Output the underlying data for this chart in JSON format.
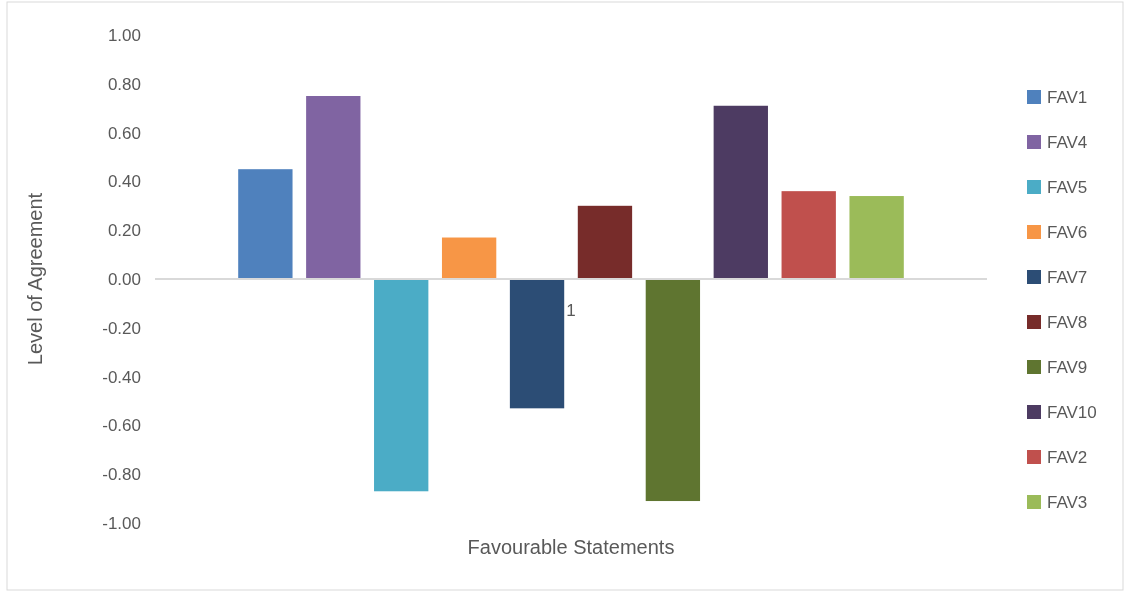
{
  "chart_data": {
    "type": "bar",
    "xlabel": "Favourable Statements",
    "ylabel": "Level of Agreement",
    "categories": [
      "1"
    ],
    "ylim": [
      -1,
      1
    ],
    "yticks": [
      {
        "value": -1,
        "label": "-1.00"
      },
      {
        "value": -0.8,
        "label": "-0.80"
      },
      {
        "value": -0.6,
        "label": "-0.60"
      },
      {
        "value": -0.4,
        "label": "-0.40"
      },
      {
        "value": -0.2,
        "label": "-0.20"
      },
      {
        "value": 0,
        "label": "0.00"
      },
      {
        "value": 0.2,
        "label": "0.20"
      },
      {
        "value": 0.4,
        "label": "0.40"
      },
      {
        "value": 0.6,
        "label": "0.60"
      },
      {
        "value": 0.8,
        "label": "0.80"
      },
      {
        "value": 1,
        "label": "1.00"
      }
    ],
    "legend": "right",
    "series": [
      {
        "name": "FAV1",
        "color": "#4f81bd",
        "values": [
          0.45
        ]
      },
      {
        "name": "FAV4",
        "color": "#8064a2",
        "values": [
          0.75
        ]
      },
      {
        "name": "FAV5",
        "color": "#4bacc6",
        "values": [
          -0.87
        ]
      },
      {
        "name": "FAV6",
        "color": "#f79646",
        "values": [
          0.17
        ]
      },
      {
        "name": "FAV7",
        "color": "#2c4d75",
        "values": [
          -0.53
        ]
      },
      {
        "name": "FAV8",
        "color": "#772c2a",
        "values": [
          0.3
        ]
      },
      {
        "name": "FAV9",
        "color": "#5f7530",
        "values": [
          -0.91
        ]
      },
      {
        "name": "FAV10",
        "color": "#4d3b62",
        "values": [
          0.71
        ]
      },
      {
        "name": "FAV2",
        "color": "#c0504d",
        "values": [
          0.36
        ]
      },
      {
        "name": "FAV3",
        "color": "#9bbb59",
        "values": [
          0.34
        ]
      }
    ]
  }
}
